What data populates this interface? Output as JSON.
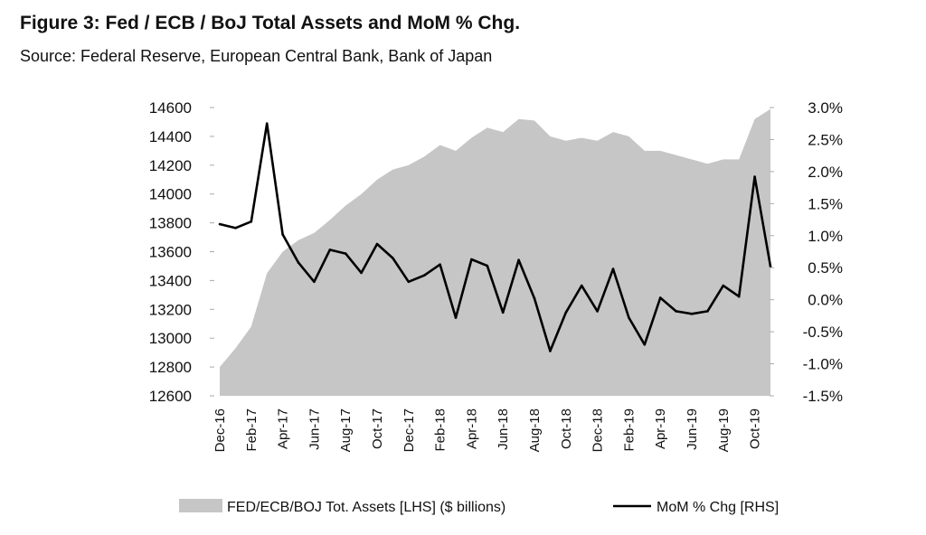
{
  "figure": {
    "title": "Figure 3:  Fed / ECB / BoJ Total Assets and MoM % Chg.",
    "source": "Source: Federal Reserve, European Central Bank, Bank of Japan"
  },
  "chart_data": {
    "type": "area",
    "x": [
      "Dec-16",
      "Jan-17",
      "Feb-17",
      "Mar-17",
      "Apr-17",
      "May-17",
      "Jun-17",
      "Jul-17",
      "Aug-17",
      "Sep-17",
      "Oct-17",
      "Nov-17",
      "Dec-17",
      "Jan-18",
      "Feb-18",
      "Mar-18",
      "Apr-18",
      "May-18",
      "Jun-18",
      "Jul-18",
      "Aug-18",
      "Sep-18",
      "Oct-18",
      "Nov-18",
      "Dec-18",
      "Jan-19",
      "Feb-19",
      "Mar-19",
      "Apr-19",
      "May-19",
      "Jun-19",
      "Jul-19",
      "Aug-19",
      "Sep-19",
      "Oct-19",
      "Nov-19"
    ],
    "x_tick_labels": [
      "Dec-16",
      "Feb-17",
      "Apr-17",
      "Jun-17",
      "Aug-17",
      "Oct-17",
      "Dec-17",
      "Feb-18",
      "Apr-18",
      "Jun-18",
      "Aug-18",
      "Oct-18",
      "Dec-18",
      "Feb-19",
      "Apr-19",
      "Jun-19",
      "Aug-19",
      "Oct-19"
    ],
    "series": [
      {
        "name": "FED/ECB/BOJ Tot. Assets [LHS] ($ billions)",
        "type": "area",
        "axis": "left",
        "color": "#c6c6c6",
        "values": [
          12800,
          12930,
          13080,
          13450,
          13600,
          13680,
          13730,
          13820,
          13920,
          14000,
          14100,
          14170,
          14200,
          14260,
          14340,
          14300,
          14390,
          14460,
          14430,
          14520,
          14510,
          14400,
          14370,
          14390,
          14370,
          14430,
          14400,
          14300,
          14300,
          14270,
          14240,
          14210,
          14240,
          14240,
          14520,
          14590
        ]
      },
      {
        "name": "MoM % Chg [RHS]",
        "type": "line",
        "axis": "right",
        "color": "#000000",
        "values": [
          1.18,
          1.12,
          1.22,
          2.75,
          1.02,
          0.58,
          0.28,
          0.78,
          0.72,
          0.42,
          0.87,
          0.65,
          0.28,
          0.38,
          0.55,
          -0.28,
          0.63,
          0.53,
          -0.2,
          0.62,
          0.02,
          -0.8,
          -0.2,
          0.22,
          -0.18,
          0.48,
          -0.28,
          -0.7,
          0.03,
          -0.18,
          -0.22,
          -0.18,
          0.22,
          0.05,
          1.92,
          0.52
        ]
      }
    ],
    "y_left": {
      "ticks": [
        "14600",
        "14400",
        "14200",
        "14000",
        "13800",
        "13600",
        "13400",
        "13200",
        "13000",
        "12800",
        "12600"
      ],
      "ylim": [
        12600,
        14600
      ]
    },
    "y_right": {
      "ticks": [
        "3.0%",
        "2.5%",
        "2.0%",
        "1.5%",
        "1.0%",
        "0.5%",
        "0.0%",
        "-0.5%",
        "-1.0%",
        "-1.5%"
      ],
      "ylim": [
        -1.5,
        3.0
      ]
    },
    "grid": false,
    "legend_position": "bottom",
    "legend": [
      {
        "label": "FED/ECB/BOJ Tot. Assets [LHS] ($ billions)",
        "swatch": "area",
        "color": "#c6c6c6"
      },
      {
        "label": "MoM % Chg [RHS]",
        "swatch": "line",
        "color": "#000000"
      }
    ]
  }
}
